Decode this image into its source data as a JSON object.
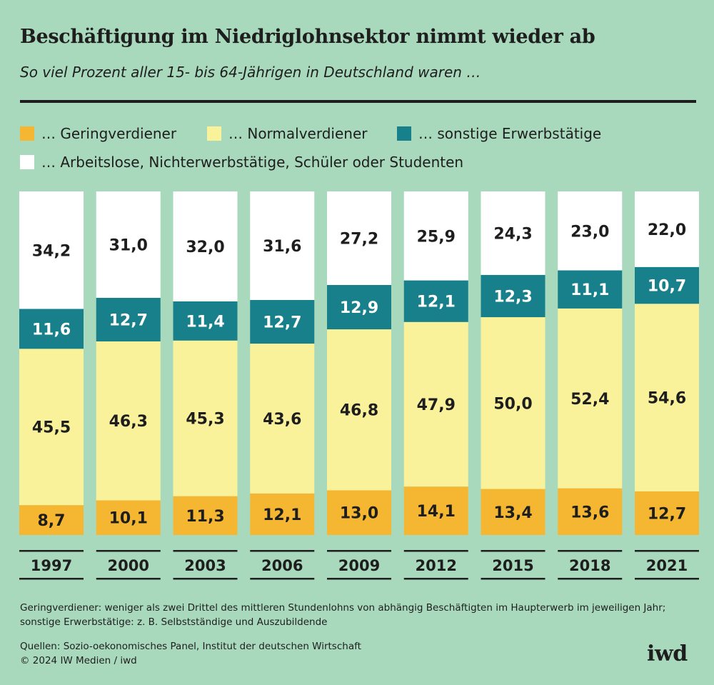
{
  "header": {
    "title": "Beschäftigung im Niedriglohnsektor nimmt wieder ab",
    "subtitle": "So viel Prozent aller 15- bis 64-Jährigen in Deutschland waren …"
  },
  "legend": [
    {
      "label": "… Geringverdiener",
      "color": "#f5b731"
    },
    {
      "label": "… Normalverdiener",
      "color": "#f9f29b"
    },
    {
      "label": "… sonstige Erwerbstätige",
      "color": "#17808b"
    },
    {
      "label": "… Arbeitslose, Nichterwerbstätige, Schüler oder Studenten",
      "color": "#ffffff"
    }
  ],
  "chart_data": {
    "type": "bar",
    "stacked": true,
    "categories": [
      "1997",
      "2000",
      "2003",
      "2006",
      "2009",
      "2012",
      "2015",
      "2018",
      "2021"
    ],
    "series": [
      {
        "name": "… Geringverdiener",
        "color": "#f5b731",
        "label_color": "#1e1e1e",
        "values": [
          8.7,
          10.1,
          11.3,
          12.1,
          13.0,
          14.1,
          13.4,
          13.6,
          12.7
        ],
        "labels": [
          "8,7",
          "10,1",
          "11,3",
          "12,1",
          "13,0",
          "14,1",
          "13,4",
          "13,6",
          "12,7"
        ]
      },
      {
        "name": "… Normalverdiener",
        "color": "#f9f29b",
        "label_color": "#1e1e1e",
        "values": [
          45.5,
          46.3,
          45.3,
          43.6,
          46.8,
          47.9,
          50.0,
          52.4,
          54.6
        ],
        "labels": [
          "45,5",
          "46,3",
          "45,3",
          "43,6",
          "46,8",
          "47,9",
          "50,0",
          "52,4",
          "54,6"
        ]
      },
      {
        "name": "… sonstige Erwerbstätige",
        "color": "#17808b",
        "label_color": "#ffffff",
        "values": [
          11.6,
          12.7,
          11.4,
          12.7,
          12.9,
          12.1,
          12.3,
          11.1,
          10.7
        ],
        "labels": [
          "11,6",
          "12,7",
          "11,4",
          "12,7",
          "12,9",
          "12,1",
          "12,3",
          "11,1",
          "10,7"
        ]
      },
      {
        "name": "… Arbeitslose, Nichterwerbstätige, Schüler oder Studenten",
        "color": "#ffffff",
        "label_color": "#1e1e1e",
        "values": [
          34.2,
          31.0,
          32.0,
          31.6,
          27.2,
          25.9,
          24.3,
          23.0,
          22.0
        ],
        "labels": [
          "34,2",
          "31,0",
          "32,0",
          "31,6",
          "27,2",
          "25,9",
          "24,3",
          "23,0",
          "22,0"
        ]
      }
    ],
    "ylim": [
      0,
      100
    ],
    "grid": false,
    "legend_position": "top-left"
  },
  "footnote": "Geringverdiener: weniger als zwei Drittel des mittleren Stundenlohns von abhängig Beschäftigten im Haupterwerb im jeweiligen Jahr; sonstige Erwerbstätige: z. B. Selbstständige und Auszubildende",
  "sources": {
    "line": "Quellen: Sozio-oekonomisches Panel, Institut der deutschen Wirtschaft",
    "copyright": "© 2024 IW Medien / iwd"
  },
  "logo": "iwd"
}
